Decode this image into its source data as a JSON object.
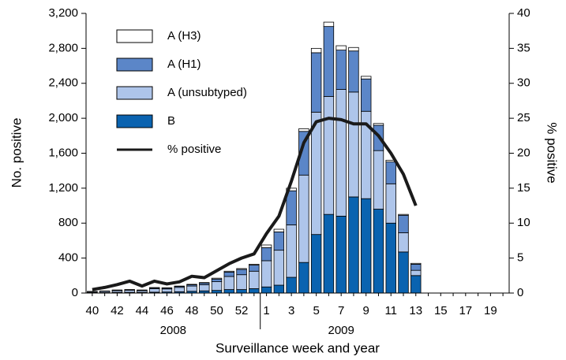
{
  "chart_data": {
    "type": "bar",
    "stacked": true,
    "x_label": "Surveillance week and year",
    "y_label": "No. positive",
    "y2_label": "% positive",
    "categories": [
      "40",
      null,
      "42",
      null,
      "44",
      null,
      "46",
      null,
      "48",
      null,
      "50",
      null,
      "52",
      null,
      "1",
      null,
      "3",
      null,
      "5",
      null,
      "7",
      null,
      "9",
      null,
      "11",
      null,
      "13",
      null,
      "15",
      null,
      "17",
      null,
      "19",
      null
    ],
    "year_labels": [
      "2008",
      "2009"
    ],
    "series": [
      {
        "name": "B",
        "color": "#0a63b0",
        "values": [
          5,
          5,
          8,
          8,
          8,
          10,
          12,
          15,
          20,
          25,
          30,
          40,
          40,
          50,
          70,
          90,
          180,
          350,
          670,
          900,
          880,
          1100,
          1080,
          960,
          800,
          470,
          200,
          null,
          null,
          null,
          null,
          null,
          null,
          null
        ]
      },
      {
        "name": "A (unsubtyped)",
        "color": "#aec5ea",
        "values": [
          10,
          15,
          20,
          25,
          20,
          40,
          35,
          50,
          60,
          70,
          100,
          150,
          170,
          200,
          300,
          400,
          600,
          1000,
          1400,
          1350,
          1450,
          1200,
          1000,
          670,
          450,
          220,
          60,
          null,
          null,
          null,
          null,
          null,
          null,
          null
        ]
      },
      {
        "name": "A (H1)",
        "color": "#5b86c8",
        "values": [
          3,
          3,
          5,
          5,
          5,
          10,
          10,
          12,
          15,
          20,
          30,
          50,
          60,
          70,
          150,
          210,
          390,
          500,
          680,
          800,
          450,
          470,
          370,
          290,
          250,
          200,
          70,
          null,
          null,
          null,
          null,
          null,
          null,
          null
        ]
      },
      {
        "name": "A (H3)",
        "color": "#ffffff",
        "values": [
          1,
          1,
          2,
          2,
          2,
          3,
          3,
          3,
          5,
          5,
          10,
          10,
          10,
          10,
          30,
          30,
          30,
          30,
          50,
          50,
          50,
          40,
          30,
          20,
          20,
          10,
          10,
          null,
          null,
          null,
          null,
          null,
          null,
          null
        ]
      },
      {
        "name": "% positive",
        "type": "line",
        "axis": "y2",
        "color": "#1a1a1a",
        "values": [
          0.5,
          0.8,
          1.2,
          1.7,
          1.0,
          1.7,
          1.3,
          1.6,
          2.4,
          2.2,
          3.2,
          4.2,
          5.0,
          5.6,
          8.5,
          11,
          16,
          21.5,
          24.5,
          25,
          24.8,
          24.2,
          24.2,
          22.5,
          20,
          17,
          12.5,
          null,
          null,
          null,
          null,
          null,
          null,
          null
        ]
      }
    ],
    "ylim": [
      0,
      3200
    ],
    "yticks": [
      0,
      400,
      800,
      {
        "value": 1200,
        "label": "1,200"
      },
      {
        "value": 1600,
        "label": "1,600"
      },
      {
        "value": 2000,
        "label": "2,000"
      },
      {
        "value": 2400,
        "label": "2,400"
      },
      {
        "value": 2800,
        "label": "2,800"
      },
      {
        "value": 3200,
        "label": "3,200"
      }
    ],
    "y2lim": [
      0,
      40
    ],
    "y2ticks": [
      0,
      5,
      10,
      15,
      20,
      25,
      30,
      35,
      40
    ]
  }
}
